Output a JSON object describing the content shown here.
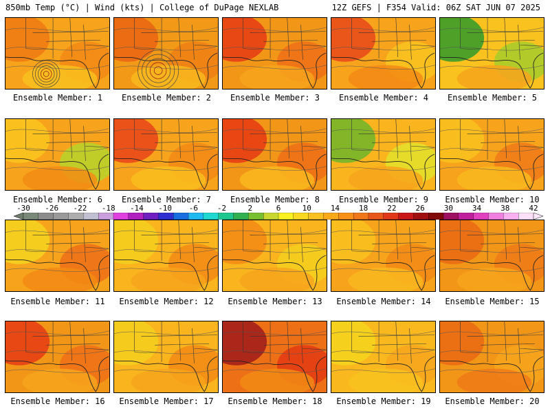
{
  "header": {
    "left": "850mb Temp (°C) | Wind (kts) | College of DuPage NEXLAB",
    "right": "12Z GEFS | F354 Valid: 06Z SAT JUN 07 2025"
  },
  "members": [
    {
      "label": "Ensemble Member: 1",
      "base": "#f7a41c",
      "blobs": [
        {
          "c": "#ee7a12"
        },
        {
          "c": "#f28a14"
        },
        {
          "c": "#f9c11e"
        }
      ],
      "low": true
    },
    {
      "label": "Ensemble Member: 2",
      "base": "#f29a18",
      "blobs": [
        {
          "c": "#ea6412"
        },
        {
          "c": "#ef7f14"
        },
        {
          "c": "#f9b81e"
        }
      ],
      "low": true
    },
    {
      "label": "Ensemble Member: 3",
      "base": "#f29618",
      "blobs": [
        {
          "c": "#e63c14"
        },
        {
          "c": "#ee7016"
        },
        {
          "c": "#f7a41c"
        }
      ]
    },
    {
      "label": "Ensemble Member: 4",
      "base": "#f7a41c",
      "blobs": [
        {
          "c": "#e8481a"
        },
        {
          "c": "#f9c41e"
        },
        {
          "c": "#f28a14"
        }
      ]
    },
    {
      "label": "Ensemble Member: 5",
      "base": "#f9c21e",
      "blobs": [
        {
          "c": "#2f9a2a"
        },
        {
          "c": "#a6cc2a"
        },
        {
          "c": "#f7a41c"
        }
      ]
    },
    {
      "label": "Ensemble Member: 6",
      "base": "#f7a41c",
      "blobs": [
        {
          "c": "#f9c61e"
        },
        {
          "c": "#b6d42a"
        },
        {
          "c": "#f28c14"
        }
      ]
    },
    {
      "label": "Ensemble Member: 7",
      "base": "#f7a41c",
      "blobs": [
        {
          "c": "#e8441a"
        },
        {
          "c": "#f28a14"
        },
        {
          "c": "#f9be1e"
        }
      ]
    },
    {
      "label": "Ensemble Member: 8",
      "base": "#f29618",
      "blobs": [
        {
          "c": "#e63a14"
        },
        {
          "c": "#ee6e16"
        },
        {
          "c": "#f9b81e"
        }
      ]
    },
    {
      "label": "Ensemble Member: 9",
      "base": "#f9b41e",
      "blobs": [
        {
          "c": "#6fb52c"
        },
        {
          "c": "#e3e22a"
        },
        {
          "c": "#f7a41c"
        }
      ]
    },
    {
      "label": "Ensemble Member: 10",
      "base": "#f7a41c",
      "blobs": [
        {
          "c": "#f9c21e"
        },
        {
          "c": "#ee7a16"
        },
        {
          "c": "#f9b81e"
        }
      ]
    },
    {
      "label": "Ensemble Member: 11",
      "base": "#f7a41c",
      "blobs": [
        {
          "c": "#f5d51e"
        },
        {
          "c": "#ee7016"
        },
        {
          "c": "#f28a14"
        }
      ]
    },
    {
      "label": "Ensemble Member: 12",
      "base": "#f9b41e",
      "blobs": [
        {
          "c": "#f5d01e"
        },
        {
          "c": "#f28a14"
        },
        {
          "c": "#f7a41c"
        }
      ]
    },
    {
      "label": "Ensemble Member: 13",
      "base": "#f9b41e",
      "blobs": [
        {
          "c": "#f28a14"
        },
        {
          "c": "#f5d01e"
        },
        {
          "c": "#f7a41c"
        }
      ]
    },
    {
      "label": "Ensemble Member: 14",
      "base": "#f7a41c",
      "blobs": [
        {
          "c": "#f9c21e"
        },
        {
          "c": "#f28a14"
        },
        {
          "c": "#f9b81e"
        }
      ]
    },
    {
      "label": "Ensemble Member: 15",
      "base": "#f29618",
      "blobs": [
        {
          "c": "#ea6a14"
        },
        {
          "c": "#ee7a16"
        },
        {
          "c": "#f7a41c"
        }
      ]
    },
    {
      "label": "Ensemble Member: 16",
      "base": "#f29618",
      "blobs": [
        {
          "c": "#e63c14"
        },
        {
          "c": "#ee7016"
        },
        {
          "c": "#f7a41c"
        }
      ]
    },
    {
      "label": "Ensemble Member: 17",
      "base": "#f9b41e",
      "blobs": [
        {
          "c": "#f5d01e"
        },
        {
          "c": "#f28a14"
        },
        {
          "c": "#f7a41c"
        }
      ]
    },
    {
      "label": "Ensemble Member: 18",
      "base": "#ee7016",
      "blobs": [
        {
          "c": "#9e1a1a"
        },
        {
          "c": "#e33a14"
        },
        {
          "c": "#f28a14"
        }
      ]
    },
    {
      "label": "Ensemble Member: 19",
      "base": "#f9b81e",
      "blobs": [
        {
          "c": "#f5d51e"
        },
        {
          "c": "#f7a41c"
        },
        {
          "c": "#f9c21e"
        }
      ]
    },
    {
      "label": "Ensemble Member: 20",
      "base": "#f29618",
      "blobs": [
        {
          "c": "#ea6a14"
        },
        {
          "c": "#f7a41c"
        },
        {
          "c": "#ee7a16"
        }
      ]
    }
  ],
  "colorbar": {
    "tick_labels": [
      "-30",
      "-26",
      "-22",
      "-18",
      "-14",
      "-10",
      "-6",
      "-2",
      "2",
      "6",
      "10",
      "14",
      "18",
      "22",
      "26",
      "30",
      "34",
      "38",
      "42"
    ],
    "colors": [
      "#7a8a7a",
      "#8c8c8c",
      "#9a9a9a",
      "#aeaeae",
      "#c0c0d0",
      "#c9a0dc",
      "#e040e0",
      "#b020c0",
      "#7020c0",
      "#3030d0",
      "#1870e0",
      "#20b8f0",
      "#20d8d0",
      "#20c890",
      "#30b050",
      "#78c030",
      "#c8d830",
      "#f8f020",
      "#f8d820",
      "#f8c020",
      "#f8a818",
      "#f89018",
      "#f07818",
      "#e85818",
      "#e03818",
      "#c81818",
      "#a01010",
      "#800808",
      "#a01060",
      "#c020a0",
      "#e040c0",
      "#f080e0",
      "#f8b0f0",
      "#fce0f8"
    ]
  }
}
